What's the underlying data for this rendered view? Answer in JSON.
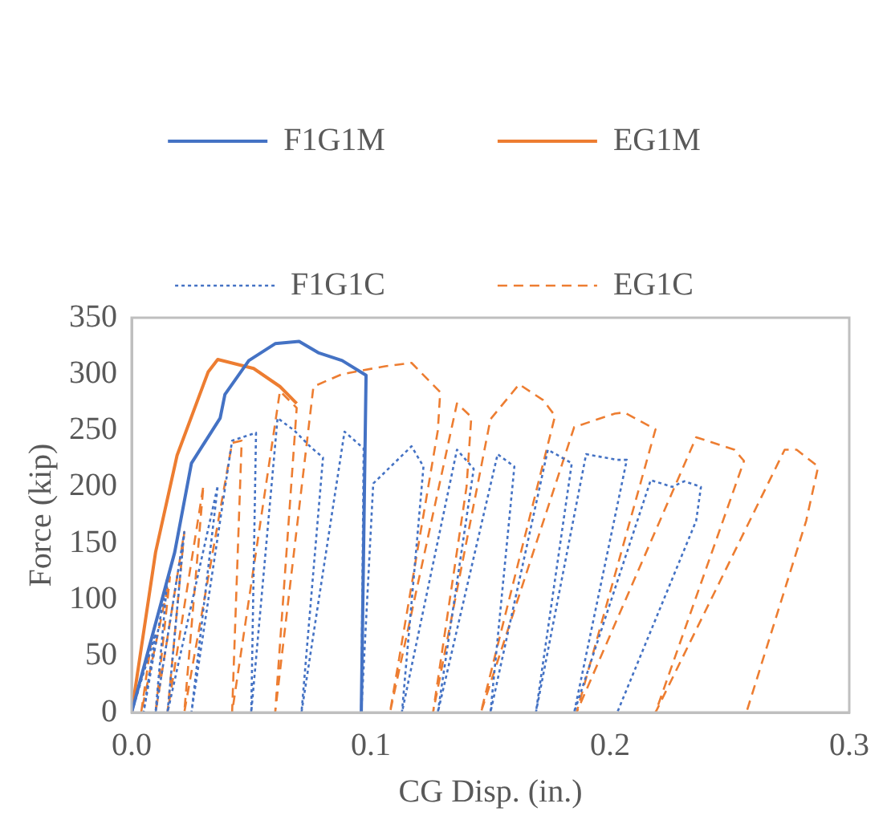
{
  "chart_data": {
    "type": "line",
    "xlabel": "CG Disp. (in.)",
    "ylabel": "Force (kip)",
    "xlim": [
      0,
      0.3
    ],
    "xticks": [
      {
        "value": 0,
        "label": "0.0"
      },
      0.1,
      0.2,
      0.3
    ],
    "ylim": [
      0,
      350
    ],
    "yticks": [
      0,
      50,
      100,
      150,
      200,
      250,
      300,
      350
    ],
    "grid": false,
    "legend": "top",
    "marker": "none",
    "series": [
      {
        "name": "F1G1M",
        "color": "#4472c4",
        "line_style": "solid",
        "x": [
          0,
          0.018,
          0.025,
          0.037,
          0.039,
          0.049,
          0.06,
          0.07,
          0.078,
          0.088,
          0.098,
          0.096
        ],
        "values": [
          0,
          142,
          221,
          261,
          282,
          312,
          327,
          329,
          319,
          312,
          299,
          0
        ]
      },
      {
        "name": "EG1M",
        "color": "#ed7d31",
        "line_style": "solid",
        "x": [
          0,
          0.01,
          0.019,
          0.032,
          0.036,
          0.051,
          0.062,
          0.069
        ],
        "values": [
          0,
          142,
          228,
          302,
          313,
          305,
          289,
          274
        ]
      },
      {
        "name": "F1G1C",
        "color": "#4472c4",
        "line_style": "dotted",
        "x": [
          0,
          0.01,
          0.005,
          0.015,
          0.01,
          0.022,
          0.015,
          0.036,
          0.025,
          0.042,
          0.052,
          0.05,
          0.061,
          0.068,
          0.075,
          0.08,
          0.071,
          0.089,
          0.097,
          0.096,
          0.101,
          0.117,
          0.122,
          0.113,
          0.136,
          0.143,
          0.128,
          0.153,
          0.16,
          0.15,
          0.174,
          0.184,
          0.169,
          0.19,
          0.203,
          0.207,
          0.185,
          0.217,
          0.226,
          0.231,
          0.238,
          0.236,
          0.203
        ],
        "values": [
          0,
          70,
          0,
          120,
          0,
          160,
          0,
          201,
          0,
          241,
          248,
          0,
          261,
          250,
          235,
          226,
          0,
          249,
          234,
          0,
          203,
          236,
          218,
          0,
          233,
          216,
          0,
          229,
          218,
          0,
          233,
          221,
          0,
          229,
          224,
          224,
          0,
          206,
          200,
          205,
          200,
          170,
          0
        ]
      },
      {
        "name": "EG1C",
        "color": "#ed7d31",
        "line_style": "dashed",
        "x": [
          0,
          0.008,
          0.004,
          0.016,
          0.01,
          0.022,
          0.015,
          0.03,
          0.022,
          0.042,
          0.046,
          0.042,
          0.062,
          0.069,
          0.06,
          0.076,
          0.088,
          0.106,
          0.117,
          0.129,
          0.128,
          0.108,
          0.136,
          0.142,
          0.14,
          0.126,
          0.15,
          0.162,
          0.172,
          0.177,
          0.146,
          0.185,
          0.202,
          0.206,
          0.219,
          0.186,
          0.236,
          0.252,
          0.256,
          0.219,
          0.273,
          0.278,
          0.287,
          0.282,
          0.257
        ],
        "values": [
          0,
          60,
          0,
          120,
          0,
          160,
          0,
          201,
          0,
          239,
          241,
          0,
          285,
          270,
          0,
          289,
          300,
          307,
          310,
          284,
          250,
          0,
          274,
          262,
          200,
          0,
          260,
          291,
          277,
          263,
          0,
          253,
          265,
          266,
          251,
          0,
          244,
          233,
          223,
          0,
          233,
          233,
          218,
          170,
          0
        ]
      }
    ]
  }
}
